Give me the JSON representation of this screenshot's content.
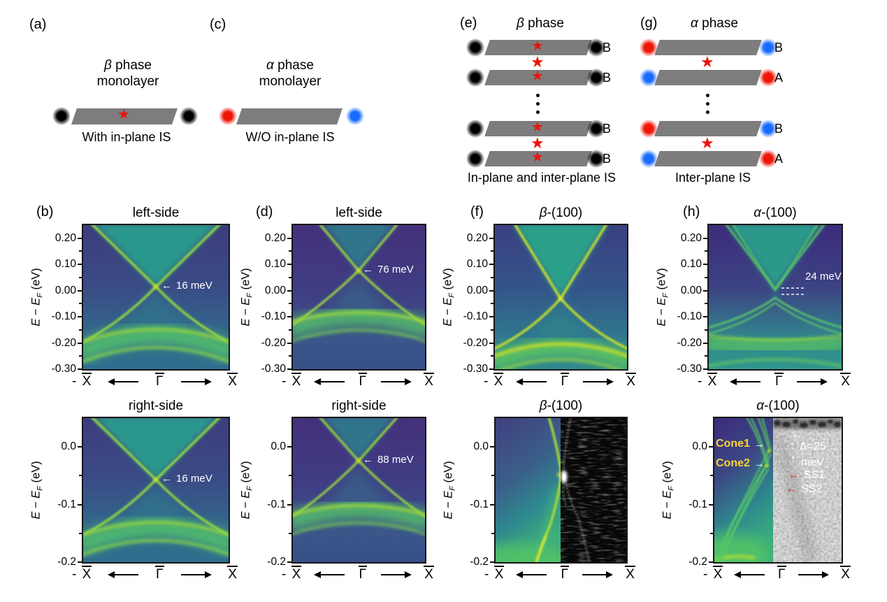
{
  "icons": {
    "star": "★",
    "arrow_left": "←",
    "arrow_right": "→",
    "arrow_up": "↑",
    "arrow_down": "↓"
  },
  "colors": {
    "star": "#e8150b",
    "dot_red": "#ee1606",
    "dot_blue": "#1a6bff",
    "layer_gray": "#7d7d7d",
    "cone_label": "#ffd233",
    "ss_arrow": "#e8150b",
    "annotation": "#ffffff"
  },
  "panels": {
    "a": {
      "label": "(a)",
      "greek": "β",
      "rest": " phase",
      "title2": "monolayer",
      "caption": "With in-plane IS"
    },
    "c": {
      "label": "(c)",
      "greek": "α",
      "rest": " phase",
      "title2": "monolayer",
      "caption": "W/O in-plane IS"
    },
    "e": {
      "label": "(e)",
      "greek": "β",
      "rest": " phase",
      "caption": "In-plane and inter-plane IS",
      "stack": [
        {
          "type": "layer",
          "left": "black",
          "right": "black",
          "label": "B",
          "star": true
        },
        {
          "type": "star"
        },
        {
          "type": "layer",
          "left": "black",
          "right": "black",
          "label": "B",
          "star": true
        },
        {
          "type": "dots"
        },
        {
          "type": "layer",
          "left": "black",
          "right": "black",
          "label": "B",
          "star": true
        },
        {
          "type": "star"
        },
        {
          "type": "layer",
          "left": "black",
          "right": "black",
          "label": "B",
          "star": true
        }
      ]
    },
    "g": {
      "label": "(g)",
      "greek": "α",
      "rest": " phase",
      "caption": "Inter-plane IS",
      "stack": [
        {
          "type": "layer",
          "left": "red",
          "right": "blue",
          "label": "B",
          "star": false
        },
        {
          "type": "star"
        },
        {
          "type": "layer",
          "left": "blue",
          "right": "red",
          "label": "A",
          "star": false
        },
        {
          "type": "dots"
        },
        {
          "type": "layer",
          "left": "red",
          "right": "blue",
          "label": "B",
          "star": false
        },
        {
          "type": "star"
        },
        {
          "type": "layer",
          "left": "blue",
          "right": "red",
          "label": "A",
          "star": false
        }
      ]
    },
    "b": {
      "label": "(b)",
      "top": {
        "title": "left-side",
        "annotation": "16 meV"
      },
      "bottom": {
        "title": "right-side",
        "annotation": "16 meV"
      }
    },
    "d": {
      "label": "(d)",
      "top": {
        "title": "left-side",
        "annotation": "76 meV"
      },
      "bottom": {
        "title": "right-side",
        "annotation": "88 meV"
      }
    },
    "f": {
      "label": "(f)",
      "top": {
        "greek": "β",
        "rest": "-(100)"
      },
      "bottom": {
        "greek": "β",
        "rest": "-(100)"
      }
    },
    "h": {
      "label": "(h)",
      "top": {
        "greek": "α",
        "rest": "-(100)",
        "annotation": "24 meV"
      },
      "bottom": {
        "greek": "α",
        "rest": "-(100)",
        "cone1": "Cone1",
        "cone2": "Cone2",
        "delta": "Δ=25",
        "delta_unit": "meV",
        "ss1": "SS1",
        "ss2": "SS2"
      }
    }
  },
  "axes": {
    "ylabel": {
      "E1": "E",
      "minus": " − ",
      "E2": "E",
      "F": "F",
      "unit": " (eV)"
    },
    "x": {
      "neg": "- ",
      "sym": "X",
      "gamma": "Γ"
    },
    "yticks_mid": [
      "0.20",
      "0.10",
      "0.00",
      "-0.10",
      "-0.20",
      "-0.30"
    ],
    "yticks_bot": [
      "0.0",
      "-0.1",
      "-0.2"
    ]
  },
  "chart_data": [
    {
      "panel": "(b) top",
      "type": "heatmap",
      "title": "left-side",
      "colormap": "viridis",
      "x_axis": [
        "-X",
        "Γ",
        "X"
      ],
      "y_label": "E − E_F (eV)",
      "y_range_eV": [
        -0.3,
        0.25
      ],
      "y_ticks": [
        0.2,
        0.1,
        0.0,
        -0.1,
        -0.2,
        -0.3
      ],
      "content": "β-phase monolayer left-side edge band structure; Dirac cone crossing at Γ",
      "dirac_point_eV": 0.016,
      "annotation": "16 meV",
      "valence_band_top_eV": -0.1
    },
    {
      "panel": "(b) bottom",
      "type": "heatmap",
      "title": "right-side",
      "colormap": "viridis",
      "x_axis": [
        "-X",
        "Γ",
        "X"
      ],
      "y_range_eV": [
        -0.3,
        0.25
      ],
      "content": "β-phase monolayer right-side edge band structure",
      "dirac_point_eV": 0.016,
      "annotation": "16 meV"
    },
    {
      "panel": "(d) top",
      "type": "heatmap",
      "title": "left-side",
      "colormap": "viridis",
      "x_axis": [
        "-X",
        "Γ",
        "X"
      ],
      "y_range_eV": [
        -0.3,
        0.25
      ],
      "content": "α-phase monolayer left-side edge band structure",
      "dirac_point_eV": 0.076,
      "annotation": "76 meV"
    },
    {
      "panel": "(d) bottom",
      "type": "heatmap",
      "title": "right-side",
      "colormap": "viridis",
      "x_axis": [
        "-X",
        "Γ",
        "X"
      ],
      "y_range_eV": [
        -0.3,
        0.25
      ],
      "content": "α-phase monolayer right-side edge band structure",
      "dirac_point_eV": 0.088,
      "annotation": "88 meV"
    },
    {
      "panel": "(f) top",
      "type": "heatmap",
      "title": "β-(100)",
      "colormap": "viridis",
      "x_axis": [
        "-X",
        "Γ",
        "X"
      ],
      "y_range_eV": [
        -0.3,
        0.25
      ],
      "content": "β bulk (100) surface band structure; gapless Dirac crossing",
      "dirac_point_eV": -0.03
    },
    {
      "panel": "(f) bottom",
      "type": "heatmap",
      "title": "β-(100)",
      "colormap": "viridis/grayscale",
      "x_axis": [
        "-X",
        "Γ",
        "X"
      ],
      "y_range_eV": [
        -0.2,
        0.05
      ],
      "y_ticks": [
        0.0,
        -0.1,
        -0.2
      ],
      "halves": {
        "left": "calculated spectral function",
        "right": "experimental ARPES (grayscale)"
      },
      "dirac_point_eV": -0.05
    },
    {
      "panel": "(h) top",
      "type": "heatmap",
      "title": "α-(100)",
      "colormap": "viridis",
      "x_axis": [
        "-X",
        "Γ",
        "X"
      ],
      "y_range_eV": [
        -0.3,
        0.25
      ],
      "content": "α bulk (100) surface band structure; gapped Dirac cone",
      "gap_meV": 24,
      "annotation": "24 meV",
      "gap_edges_eV": [
        0.0,
        -0.025
      ]
    },
    {
      "panel": "(h) bottom",
      "type": "heatmap",
      "title": "α-(100)",
      "colormap": "viridis/grayscale",
      "x_axis": [
        "-X",
        "Γ",
        "X"
      ],
      "y_range_eV": [
        -0.2,
        0.05
      ],
      "y_ticks": [
        0.0,
        -0.1,
        -0.2
      ],
      "halves": {
        "left": "calculated spectral function",
        "right": "experimental ARPES (grayscale)"
      },
      "cones": [
        {
          "name": "Cone1",
          "energy_eV": -0.01
        },
        {
          "name": "Cone2",
          "energy_eV": -0.035
        }
      ],
      "cone_separation": "Δ=25 meV",
      "surface_states": [
        "SS1",
        "SS2"
      ]
    }
  ]
}
